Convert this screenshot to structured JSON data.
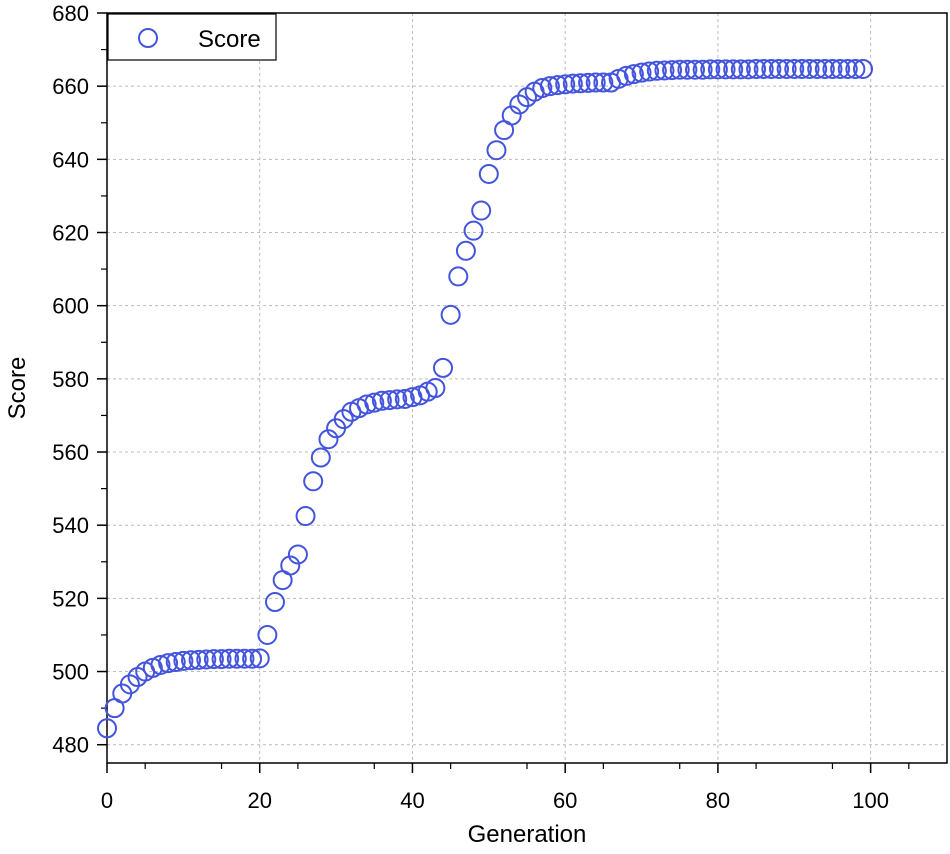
{
  "chart_data": {
    "type": "scatter",
    "title": "",
    "xlabel": "Generation",
    "ylabel": "Score",
    "xlim": [
      0,
      110
    ],
    "ylim": [
      475,
      680
    ],
    "xticks": [
      0,
      20,
      40,
      60,
      80,
      100
    ],
    "yticks": [
      480,
      500,
      520,
      540,
      560,
      580,
      600,
      620,
      640,
      660,
      680
    ],
    "grid": true,
    "legend_position": "top-left",
    "marker": "open-circle",
    "marker_color": "#4455dd",
    "series": [
      {
        "name": "Score",
        "x": [
          0,
          1,
          2,
          3,
          4,
          5,
          6,
          7,
          8,
          9,
          10,
          11,
          12,
          13,
          14,
          15,
          16,
          17,
          18,
          19,
          20,
          21,
          22,
          23,
          24,
          25,
          26,
          27,
          28,
          29,
          30,
          31,
          32,
          33,
          34,
          35,
          36,
          37,
          38,
          39,
          40,
          41,
          42,
          43,
          44,
          45,
          46,
          47,
          48,
          49,
          50,
          51,
          52,
          53,
          54,
          55,
          56,
          57,
          58,
          59,
          60,
          61,
          62,
          63,
          64,
          65,
          66,
          67,
          68,
          69,
          70,
          71,
          72,
          73,
          74,
          75,
          76,
          77,
          78,
          79,
          80,
          81,
          82,
          83,
          84,
          85,
          86,
          87,
          88,
          89,
          90,
          91,
          92,
          93,
          94,
          95,
          96,
          97,
          98,
          99
        ],
        "y": [
          484.5,
          490,
          494,
          496.5,
          498.5,
          500,
          501,
          501.8,
          502.3,
          502.6,
          502.9,
          503.1,
          503.2,
          503.3,
          503.4,
          503.4,
          503.5,
          503.5,
          503.5,
          503.5,
          503.6,
          510,
          519,
          525,
          529,
          532,
          542.5,
          552,
          558.5,
          563.5,
          566.5,
          569,
          571,
          572,
          573,
          573.5,
          574,
          574.2,
          574.4,
          574.5,
          575,
          575.5,
          576.5,
          577.5,
          583,
          597.5,
          608,
          615,
          620.5,
          626,
          636,
          642.5,
          648,
          652,
          655,
          657,
          658.5,
          659.5,
          660,
          660.3,
          660.5,
          660.7,
          660.8,
          660.9,
          661,
          661,
          661,
          662,
          662.8,
          663.3,
          663.7,
          664,
          664.2,
          664.3,
          664.4,
          664.5,
          664.5,
          664.5,
          664.5,
          664.6,
          664.6,
          664.6,
          664.6,
          664.6,
          664.6,
          664.7,
          664.7,
          664.7,
          664.7,
          664.7,
          664.7,
          664.7,
          664.7,
          664.7,
          664.7,
          664.7,
          664.7,
          664.7,
          664.7,
          664.7
        ]
      }
    ]
  }
}
